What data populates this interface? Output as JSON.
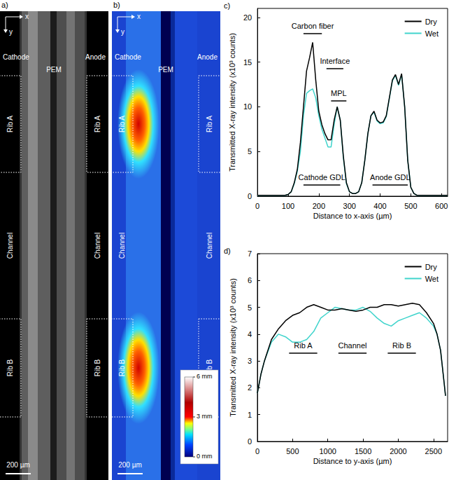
{
  "panels": [
    {
      "label": "a)",
      "axes": [
        "x",
        "y"
      ],
      "electrodes": {
        "left": "Cathode",
        "middle": "PEM",
        "right": "Anode"
      },
      "regions": [
        "Rib A",
        "Channel",
        "Rib B"
      ],
      "scale_bar": "200 µm"
    },
    {
      "label": "b)",
      "axes": [
        "x",
        "y"
      ],
      "electrodes": {
        "left": "Cathode",
        "middle": "PEM",
        "right": "Anode"
      },
      "regions": [
        "Rib A",
        "Channel",
        "Rib B"
      ],
      "scale_bar": "200 µm",
      "colorbar": {
        "range": [
          0,
          6
        ],
        "ticks": [
          {
            "value": 0,
            "label": "0 mm"
          },
          {
            "value": 3,
            "label": "3 mm"
          },
          {
            "value": 6,
            "label": "6 mm"
          }
        ]
      }
    }
  ],
  "chart_data": [
    {
      "label": "c)",
      "type": "line",
      "x_label": "Distance to x-axis (µm)",
      "y_label": "Transmitted X-ray intensity (x10³ counts)",
      "xlim": [
        0,
        620
      ],
      "xticks": [
        0,
        100,
        200,
        300,
        400,
        500,
        600
      ],
      "ylim": [
        0,
        21
      ],
      "yticks": [
        0,
        5,
        10,
        15,
        20
      ],
      "grid": false,
      "legend": "upper right",
      "x": [
        0,
        10,
        20,
        30,
        40,
        50,
        60,
        70,
        80,
        90,
        100,
        110,
        120,
        130,
        140,
        150,
        160,
        170,
        180,
        190,
        200,
        210,
        220,
        230,
        240,
        250,
        260,
        270,
        280,
        290,
        300,
        310,
        320,
        330,
        340,
        350,
        360,
        370,
        380,
        390,
        400,
        410,
        420,
        430,
        440,
        450,
        460,
        470,
        480,
        490,
        500,
        510,
        520,
        530,
        540,
        550,
        560,
        570,
        580,
        590,
        600,
        610,
        620
      ],
      "series": [
        {
          "name": "Dry",
          "color": "#000000",
          "values": [
            0.1,
            0.1,
            0.1,
            0.1,
            0.1,
            0.1,
            0.1,
            0.1,
            0.1,
            0.1,
            0.2,
            0.5,
            1.5,
            3,
            6,
            10,
            14,
            15.5,
            17.2,
            13,
            9.5,
            8,
            7,
            6.3,
            6.3,
            8.5,
            10,
            8.5,
            4.5,
            1.5,
            0.5,
            0.3,
            0.3,
            0.5,
            1.5,
            4,
            7,
            9,
            9.5,
            8.5,
            8.2,
            8.3,
            9,
            11,
            13,
            13.6,
            12.5,
            13.7,
            10,
            4,
            1,
            0.3,
            0.1,
            0.1,
            0.1,
            0.1,
            0.1,
            0.1,
            0.1,
            0.1,
            0.1,
            0.1,
            0.1
          ]
        },
        {
          "name": "Wet",
          "color": "#40d4cc",
          "values": [
            0.1,
            0.1,
            0.1,
            0.1,
            0.1,
            0.1,
            0.1,
            0.1,
            0.1,
            0.1,
            0.2,
            0.5,
            1.4,
            2.8,
            5,
            9,
            11.5,
            11.8,
            12,
            11,
            9,
            7.5,
            6.5,
            5.5,
            5.5,
            8,
            10,
            8.5,
            4.3,
            1.4,
            0.5,
            0.3,
            0.3,
            0.5,
            1.5,
            4,
            7,
            9,
            9.4,
            8.4,
            8.1,
            8.2,
            8.9,
            10.9,
            12.9,
            13.5,
            12.4,
            13.6,
            10,
            4,
            1,
            0.3,
            0.1,
            0.1,
            0.1,
            0.1,
            0.1,
            0.1,
            0.1,
            0.1,
            0.1,
            0.1,
            0.1
          ]
        }
      ],
      "annotations": [
        {
          "text": "Carbon fiber",
          "x": [
            150,
            210
          ],
          "y": 18.2
        },
        {
          "text": "Interface",
          "x": [
            225,
            280
          ],
          "y": 14.3
        },
        {
          "text": "MPL",
          "x": [
            240,
            290
          ],
          "y": 10.7
        },
        {
          "text": "Cathode GDL",
          "x": [
            150,
            270
          ],
          "y": 1.3
        },
        {
          "text": "Anode GDL",
          "x": [
            375,
            490
          ],
          "y": 1.3
        }
      ]
    },
    {
      "label": "d)",
      "type": "line",
      "x_label": "Distance to y-axis (µm)",
      "y_label": "Transmitted X-ray intensity (x10³ counts)",
      "xlim": [
        0,
        2700
      ],
      "xticks": [
        0,
        500,
        1000,
        1500,
        2000,
        2500
      ],
      "ylim": [
        0,
        7
      ],
      "yticks": [
        0,
        1,
        2,
        3,
        4,
        5,
        6,
        7
      ],
      "grid": false,
      "legend": "upper right",
      "x": [
        0,
        50,
        100,
        200,
        300,
        400,
        500,
        600,
        700,
        800,
        900,
        1000,
        1100,
        1200,
        1300,
        1400,
        1500,
        1600,
        1700,
        1800,
        1900,
        2000,
        2100,
        2200,
        2300,
        2400,
        2500,
        2550,
        2600,
        2650,
        2670
      ],
      "series": [
        {
          "name": "Dry",
          "color": "#000000",
          "values": [
            1.8,
            2.5,
            3,
            3.8,
            4.2,
            4.5,
            4.7,
            4.8,
            5,
            5.1,
            5,
            4.9,
            4.9,
            4.95,
            4.9,
            4.85,
            4.9,
            5,
            5,
            5.1,
            5.1,
            5.05,
            5.1,
            5.15,
            5.1,
            4.8,
            4.4,
            4,
            3.4,
            2.2,
            1.7
          ]
        },
        {
          "name": "Wet",
          "color": "#40d4cc",
          "values": [
            1.8,
            2.5,
            3,
            3.7,
            4,
            3.9,
            3.7,
            3.7,
            3.8,
            4.1,
            4.6,
            4.8,
            5,
            4.95,
            4.9,
            4.9,
            5,
            4.85,
            4.6,
            4.4,
            4.3,
            4.5,
            4.6,
            4.7,
            4.8,
            4.6,
            4.3,
            4,
            3.4,
            2.2,
            1.7
          ]
        }
      ],
      "annotations": [
        {
          "text": "Rib A",
          "x": [
            450,
            850
          ],
          "y": 3.3
        },
        {
          "text": "Channel",
          "x": [
            1150,
            1550
          ],
          "y": 3.3
        },
        {
          "text": "Rib B",
          "x": [
            1850,
            2250
          ],
          "y": 3.3
        }
      ]
    }
  ]
}
